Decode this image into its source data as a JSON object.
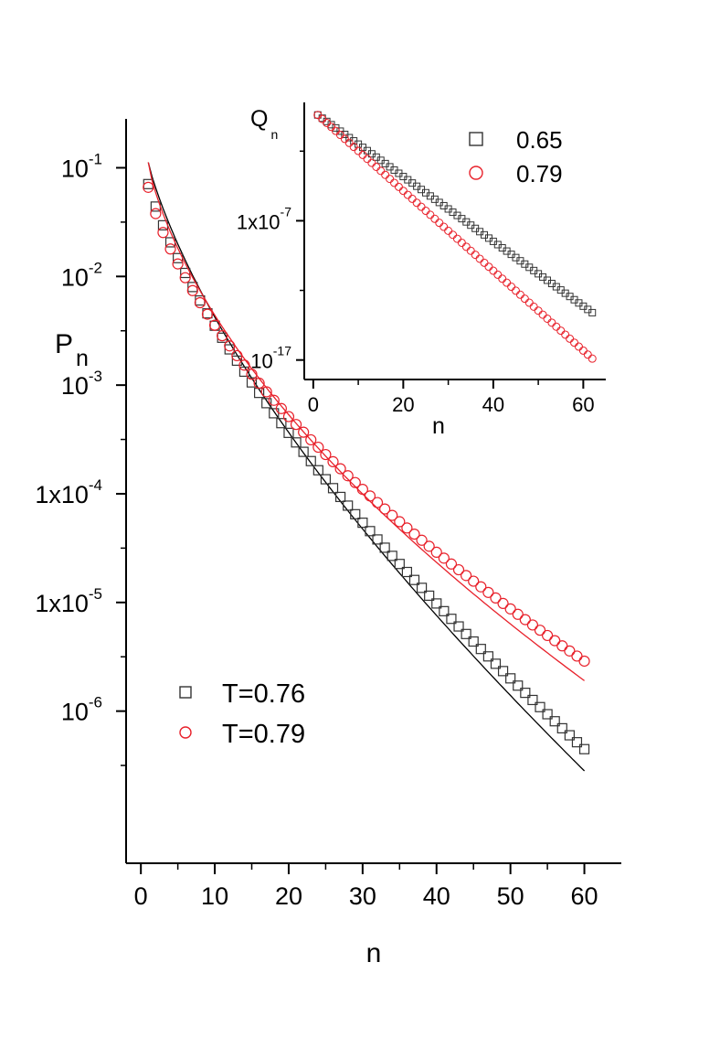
{
  "chart_data": [
    {
      "type": "scatter",
      "xlabel": "n",
      "ylabel": "P",
      "ylabel_sub": "n",
      "xlim": [
        -2,
        65
      ],
      "x_ticks": [
        "0",
        "10",
        "20",
        "30",
        "40",
        "50",
        "60"
      ],
      "y_scale": "log",
      "y_exp_lim": [
        -7.4,
        -0.55
      ],
      "y_ticks": [
        {
          "mant": "10",
          "exp": "-1",
          "e": -1
        },
        {
          "mant": "10",
          "exp": "-2",
          "e": -2
        },
        {
          "mant": "10",
          "exp": "-3",
          "e": -3
        },
        {
          "mant": "1x10",
          "exp": "-4",
          "e": -4
        },
        {
          "mant": "1x10",
          "exp": "-5",
          "e": -5
        },
        {
          "mant": "10",
          "exp": "-6",
          "e": -6
        }
      ],
      "legend": {
        "placement": "bottom-left"
      },
      "series": [
        {
          "name": "T=0.76",
          "marker": "square",
          "color": "#333333",
          "points": {
            "n_start": 1,
            "n_end": 60,
            "exp_start": -1.15,
            "decay": 0.13,
            "decay_end": 0.0845
          },
          "fit_curve": {
            "color": "#000000",
            "exp_start": -0.95,
            "exp_end": -6.55
          }
        },
        {
          "name": "T=0.79",
          "marker": "circle",
          "color": "#e8202a",
          "points": {
            "n_start": 1,
            "n_end": 60,
            "exp_start": -1.18,
            "decay": 0.13,
            "decay_end": 0.058
          },
          "fit_curve": {
            "color": "#e8202a",
            "exp_start": -0.95,
            "exp_end": -5.72
          }
        }
      ]
    },
    {
      "type": "scatter",
      "inset": true,
      "xlabel": "n",
      "ylabel": "Q",
      "ylabel_sub": "n",
      "xlim": [
        -2,
        65
      ],
      "x_ticks": [
        "0",
        "20",
        "40",
        "60"
      ],
      "y_scale": "log",
      "y_exp_lim": [
        -18.4,
        1.5
      ],
      "y_ticks": [
        {
          "mant": "1x10",
          "exp": "-7",
          "e": -7
        },
        {
          "mant": "10",
          "exp": "-17",
          "e": -17
        }
      ],
      "legend": {
        "placement": "top-right"
      },
      "series": [
        {
          "name": "0.65",
          "marker": "square",
          "color": "#333333",
          "points": {
            "n_start": 1,
            "n_end": 62,
            "exp_start": 0.6,
            "exp_end": -13.6
          }
        },
        {
          "name": "0.79",
          "marker": "circle",
          "color": "#e8202a",
          "points": {
            "n_start": 1,
            "n_end": 62,
            "exp_start": 0.6,
            "exp_end": -16.9
          }
        }
      ]
    }
  ]
}
